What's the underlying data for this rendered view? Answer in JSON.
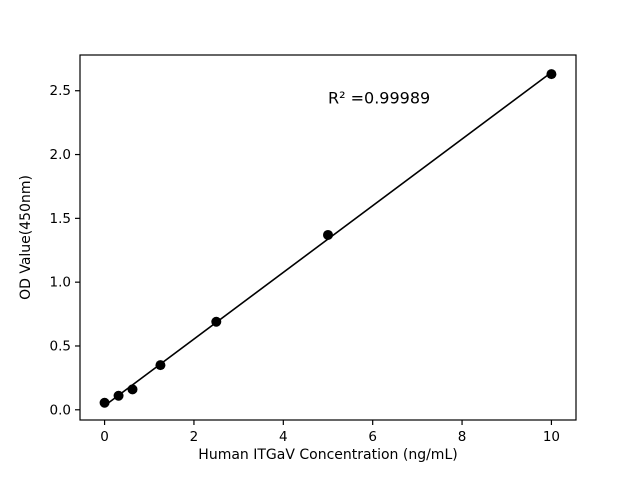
{
  "chart_data": {
    "type": "scatter",
    "title": "",
    "xlabel": "Human ITGaV Concentration (ng/mL)",
    "ylabel": "OD Value(450nm)",
    "annotation": "R² =0.99989",
    "annotation_pos": [
      5.0,
      2.4
    ],
    "x": [
      0,
      0.313,
      0.625,
      1.25,
      2.5,
      5,
      10
    ],
    "y": [
      0.055,
      0.11,
      0.16,
      0.35,
      0.69,
      1.37,
      2.63
    ],
    "fit_line": true,
    "xlim": [
      -0.55,
      10.55
    ],
    "ylim": [
      -0.08,
      2.78
    ],
    "xtick_values": [
      0,
      2,
      4,
      6,
      8,
      10
    ],
    "xtick_labels": [
      "0",
      "2",
      "4",
      "6",
      "8",
      "10"
    ],
    "ytick_values": [
      0.0,
      0.5,
      1.0,
      1.5,
      2.0,
      2.5
    ],
    "ytick_labels": [
      "0.0",
      "0.5",
      "1.0",
      "1.5",
      "2.0",
      "2.5"
    ],
    "grid": false,
    "legend": "none",
    "marker_color": "#000000",
    "line_color": "#000000",
    "frame_color": "#000000",
    "background": "#ffffff"
  }
}
